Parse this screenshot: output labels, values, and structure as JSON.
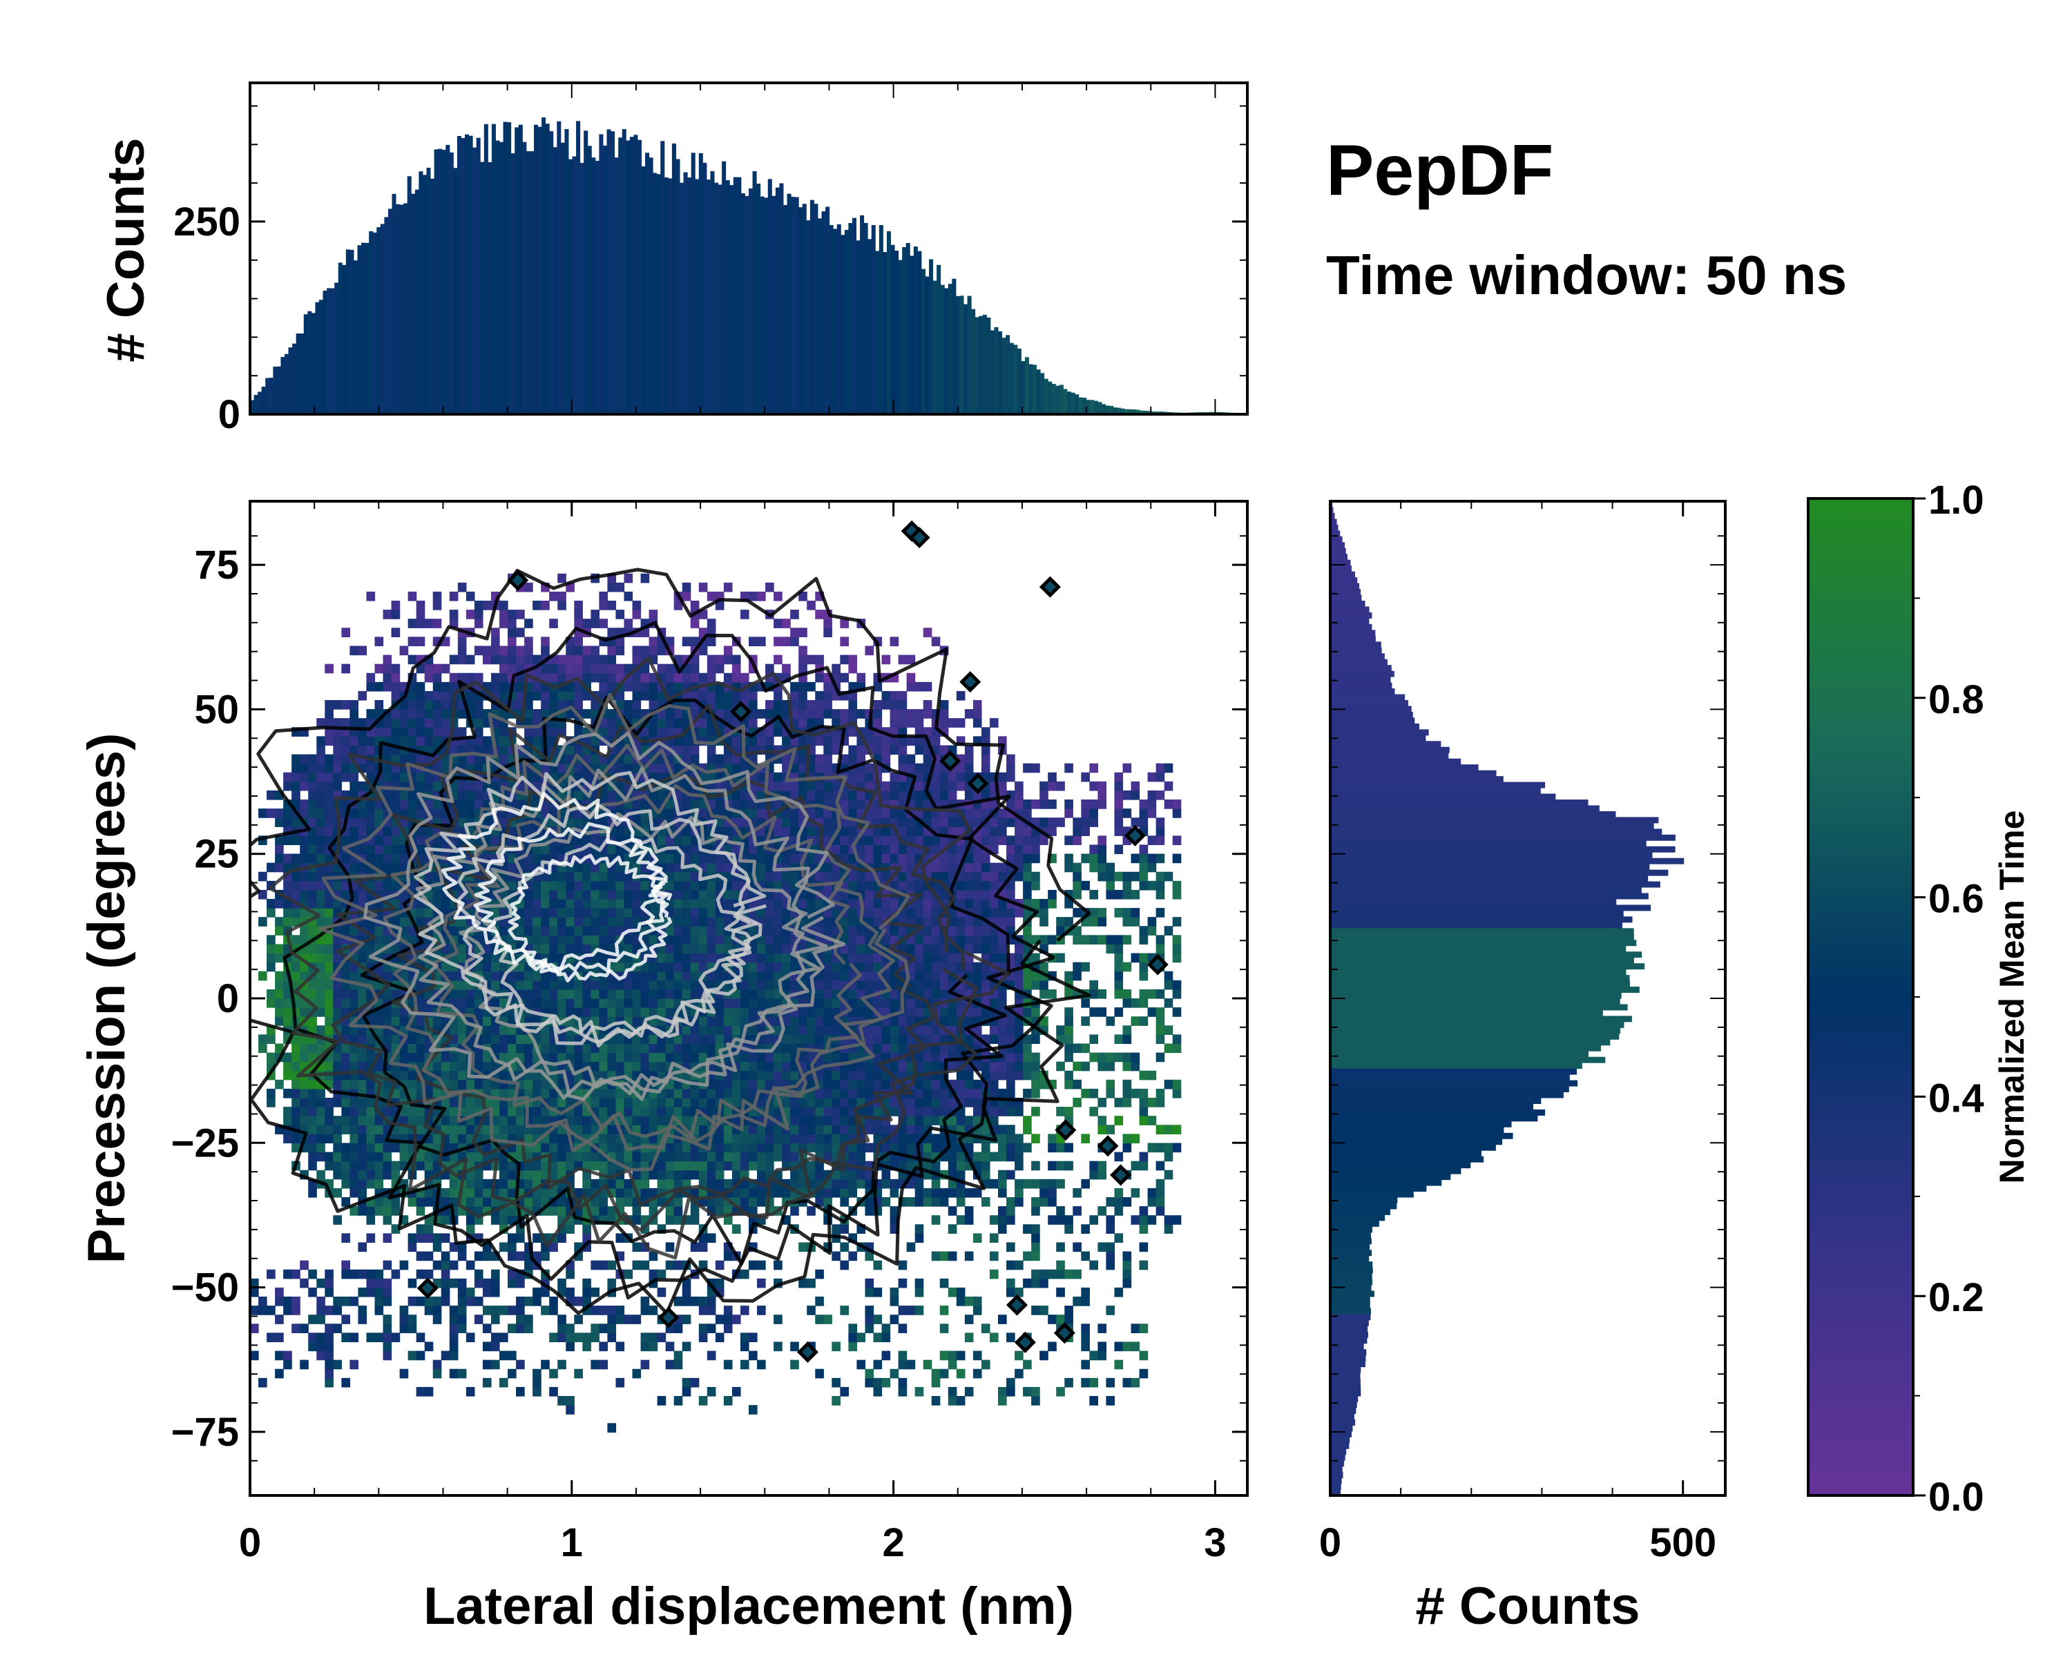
{
  "chart_data": {
    "type": "heatmap",
    "title": "PepDF",
    "subtitle": "Time window: 50 ns",
    "xlabel": "Lateral displacement (nm)",
    "ylabel": "Precession (degrees)",
    "xlim": [
      0,
      3.1
    ],
    "ylim": [
      -86,
      86
    ],
    "x_ticks": [
      {
        "value": 0,
        "label": "0"
      },
      {
        "value": 1,
        "label": "1"
      },
      {
        "value": 2,
        "label": "2"
      },
      {
        "value": 3,
        "label": "3"
      }
    ],
    "y_ticks": [
      {
        "value": 75,
        "label": "75"
      },
      {
        "value": 50,
        "label": "50"
      },
      {
        "value": 25,
        "label": "25"
      },
      {
        "value": 0,
        "label": "0"
      },
      {
        "value": -25,
        "label": "−25"
      },
      {
        "value": -50,
        "label": "−50"
      },
      {
        "value": -75,
        "label": "−75"
      }
    ],
    "top_histogram": {
      "ylabel": "# Counts",
      "ylim": [
        0,
        430
      ],
      "y_ticks": [
        {
          "value": 0,
          "label": "0"
        },
        {
          "value": 250,
          "label": "250"
        }
      ],
      "bins_x": [
        0.0,
        0.1,
        0.2,
        0.3,
        0.4,
        0.5,
        0.6,
        0.7,
        0.8,
        0.9,
        1.0,
        1.1,
        1.2,
        1.3,
        1.4,
        1.5,
        1.6,
        1.7,
        1.8,
        1.9,
        2.0,
        2.1,
        2.2,
        2.3,
        2.4,
        2.5,
        2.6,
        2.7,
        2.8,
        2.9,
        3.0,
        3.1
      ],
      "counts": [
        15,
        70,
        140,
        200,
        250,
        300,
        330,
        350,
        360,
        370,
        355,
        350,
        345,
        330,
        320,
        305,
        290,
        275,
        255,
        240,
        220,
        195,
        160,
        120,
        75,
        40,
        20,
        8,
        4,
        2,
        3,
        1
      ]
    },
    "right_histogram": {
      "xlabel": "# Counts",
      "xlim": [
        0,
        560
      ],
      "x_ticks": [
        {
          "value": 0,
          "label": "0"
        },
        {
          "value": 500,
          "label": "500"
        }
      ],
      "bins_y": [
        -85,
        -80,
        -75,
        -70,
        -65,
        -60,
        -55,
        -50,
        -45,
        -40,
        -35,
        -30,
        -25,
        -20,
        -15,
        -10,
        -5,
        0,
        5,
        10,
        15,
        20,
        25,
        30,
        35,
        40,
        45,
        50,
        55,
        60,
        65,
        70,
        75,
        80,
        85
      ],
      "counts": [
        15,
        20,
        30,
        40,
        45,
        50,
        55,
        60,
        55,
        60,
        100,
        180,
        240,
        290,
        340,
        370,
        395,
        420,
        430,
        420,
        425,
        445,
        480,
        460,
        340,
        200,
        140,
        110,
        90,
        70,
        60,
        45,
        30,
        15,
        3
      ]
    },
    "colorbar": {
      "label": "Normalized Mean Time",
      "range": [
        0,
        1
      ],
      "ticks": [
        {
          "value": 0.0,
          "label": "0.0"
        },
        {
          "value": 0.2,
          "label": "0.2"
        },
        {
          "value": 0.4,
          "label": "0.4"
        },
        {
          "value": 0.6,
          "label": "0.6"
        },
        {
          "value": 0.8,
          "label": "0.8"
        },
        {
          "value": 1.0,
          "label": "1.0"
        }
      ],
      "stops": [
        "#663399",
        "#35338a",
        "#003366",
        "#1a6b5a",
        "#228b22"
      ]
    },
    "contour_colors": [
      "#000000",
      "#333333",
      "#666666",
      "#999999",
      "#cccccc",
      "#ffffff"
    ]
  }
}
